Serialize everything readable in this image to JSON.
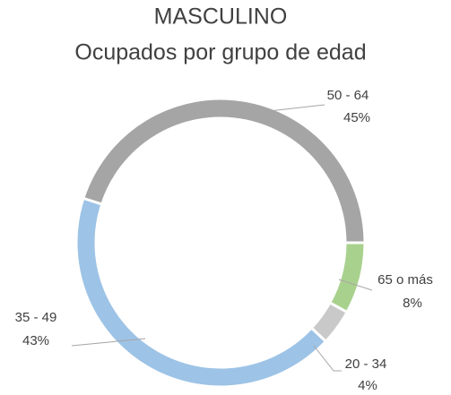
{
  "chart_data": {
    "type": "donut",
    "title": "MASCULINO",
    "subtitle": "Ocupados por grupo de edad",
    "categories": [
      "65 o más",
      "20 - 34",
      "35 - 49",
      "50 - 64"
    ],
    "values": [
      8,
      4,
      43,
      45
    ],
    "value_labels": [
      "8%",
      "4%",
      "43%",
      "45%"
    ],
    "colors": [
      "#a9d18e",
      "#c9c9c9",
      "#9dc3e6",
      "#a5a5a5"
    ]
  }
}
